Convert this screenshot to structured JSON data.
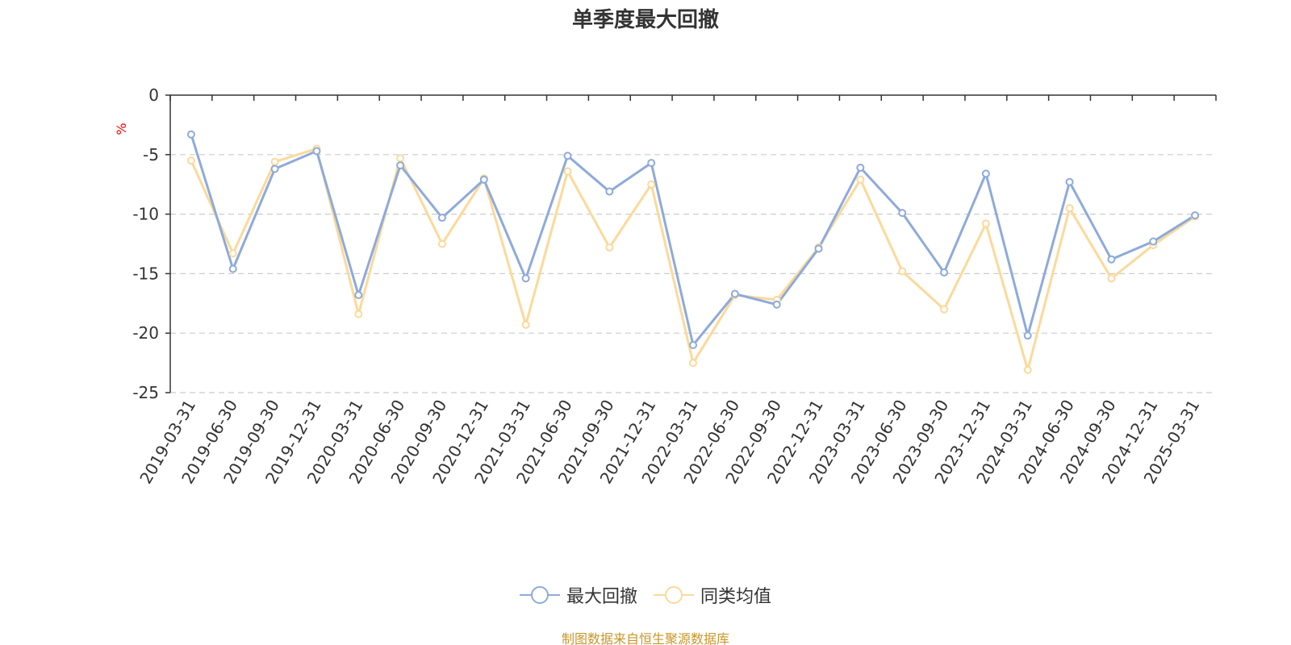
{
  "title": "单季度最大回撤",
  "source_note": "制图数据来自恒生聚源数据库",
  "colors": {
    "series1": "#8eaadb",
    "series2": "#fcd99a",
    "axis": "#333333",
    "grid": "#cccccc",
    "unit": "#ff0000",
    "source": "#c8962a"
  },
  "chart_data": {
    "type": "line",
    "title": "单季度最大回撤",
    "ylabel": "%",
    "xlabel": "",
    "ylim": [
      -25,
      0
    ],
    "yticks": [
      0,
      -5,
      -10,
      -15,
      -20,
      -25
    ],
    "grid": true,
    "legend_position": "bottom-center",
    "categories": [
      "2019-03-31",
      "2019-06-30",
      "2019-09-30",
      "2019-12-31",
      "2020-03-31",
      "2020-06-30",
      "2020-09-30",
      "2020-12-31",
      "2021-03-31",
      "2021-06-30",
      "2021-09-30",
      "2021-12-31",
      "2022-03-31",
      "2022-06-30",
      "2022-09-30",
      "2022-12-31",
      "2023-03-31",
      "2023-06-30",
      "2023-09-30",
      "2023-12-31",
      "2024-03-31",
      "2024-06-30",
      "2024-09-30",
      "2024-12-31",
      "2025-03-31"
    ],
    "series": [
      {
        "name": "最大回撤",
        "color": "#8eaadb",
        "values": [
          -3.3,
          -14.6,
          -6.2,
          -4.7,
          -16.8,
          -5.9,
          -10.3,
          -7.1,
          -15.4,
          -5.1,
          -8.1,
          -5.7,
          -21.0,
          -16.7,
          -17.6,
          -12.9,
          -6.1,
          -9.9,
          -14.9,
          -6.6,
          -20.2,
          -7.3,
          -13.8,
          -12.3,
          -10.1
        ]
      },
      {
        "name": "同类均值",
        "color": "#fcd99a",
        "values": [
          -5.5,
          -13.3,
          -5.6,
          -4.5,
          -18.4,
          -5.3,
          -12.5,
          -7.0,
          -19.3,
          -6.4,
          -12.8,
          -7.5,
          -22.5,
          -16.8,
          -17.2,
          -12.8,
          -7.1,
          -14.8,
          -18.0,
          -10.8,
          -23.1,
          -9.5,
          -15.4,
          -12.6,
          -10.2
        ]
      }
    ]
  }
}
